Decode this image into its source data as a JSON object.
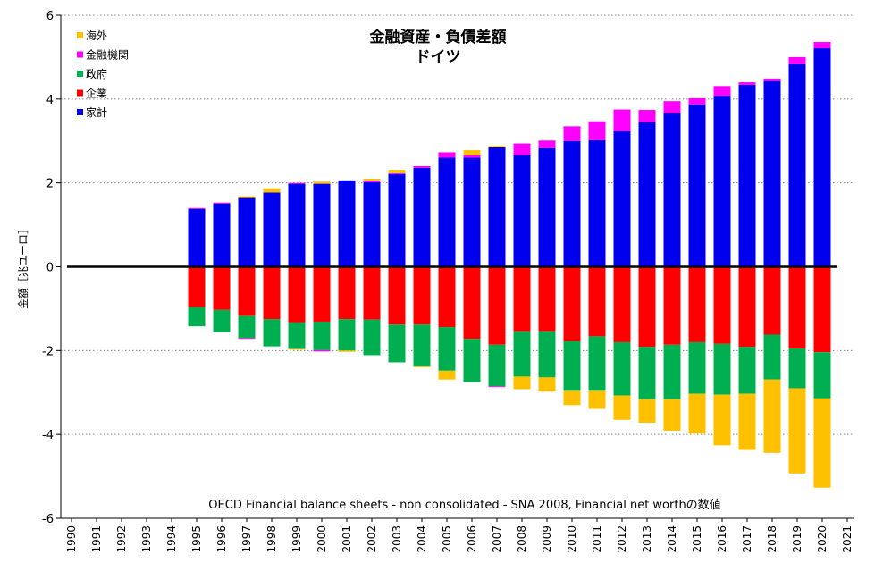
{
  "chart_data": {
    "type": "bar",
    "stacked": true,
    "title": "金融資産・負債差額",
    "subtitle": "ドイツ",
    "ylabel": "金額［兆ユーロ］",
    "xlabel": "",
    "annotation": "OECD Financial balance sheets - non consolidated - SNA 2008, Financial net worthの数値",
    "ylim": [
      -6,
      6
    ],
    "yticks": [
      -6,
      -4,
      -2,
      0,
      2,
      4,
      6
    ],
    "grid": "horizontal dotted",
    "legend_position": "top-left",
    "categories": [
      "1990",
      "1991",
      "1992",
      "1993",
      "1994",
      "1995",
      "1996",
      "1997",
      "1998",
      "1999",
      "2000",
      "2001",
      "2002",
      "2003",
      "2004",
      "2005",
      "2006",
      "2007",
      "2008",
      "2009",
      "2010",
      "2011",
      "2012",
      "2013",
      "2014",
      "2015",
      "2016",
      "2017",
      "2018",
      "2019",
      "2020",
      "2021"
    ],
    "series": [
      {
        "name": "家計",
        "color": "#0000ee",
        "values": [
          null,
          null,
          null,
          null,
          null,
          1.38,
          1.51,
          1.64,
          1.77,
          1.98,
          1.98,
          2.06,
          2.02,
          2.21,
          2.36,
          2.6,
          2.6,
          2.85,
          2.66,
          2.83,
          3.0,
          3.02,
          3.23,
          3.45,
          3.66,
          3.87,
          4.08,
          4.34,
          4.43,
          4.83,
          5.21,
          null
        ]
      },
      {
        "name": "企業",
        "color": "#ff0000",
        "values": [
          null,
          null,
          null,
          null,
          null,
          -0.97,
          -1.03,
          -1.17,
          -1.25,
          -1.33,
          -1.31,
          -1.25,
          -1.26,
          -1.38,
          -1.38,
          -1.44,
          -1.72,
          -1.86,
          -1.54,
          -1.54,
          -1.78,
          -1.66,
          -1.8,
          -1.91,
          -1.86,
          -1.8,
          -1.84,
          -1.91,
          -1.62,
          -1.95,
          -2.04,
          null
        ]
      },
      {
        "name": "政府",
        "color": "#00b050",
        "values": [
          null,
          null,
          null,
          null,
          null,
          -0.45,
          -0.53,
          -0.53,
          -0.65,
          -0.63,
          -0.68,
          -0.75,
          -0.85,
          -0.9,
          -1.0,
          -1.04,
          -1.03,
          -0.99,
          -1.08,
          -1.1,
          -1.18,
          -1.3,
          -1.27,
          -1.25,
          -1.3,
          -1.23,
          -1.21,
          -1.12,
          -1.07,
          -0.95,
          -1.1,
          null
        ]
      },
      {
        "name": "金融機関",
        "color": "#ff00ff",
        "values": [
          null,
          null,
          null,
          null,
          null,
          0.02,
          0.02,
          -0.02,
          0,
          0.02,
          -0.03,
          0,
          0.04,
          0.02,
          0.04,
          0.13,
          0.06,
          -0.02,
          0.28,
          0.18,
          0.35,
          0.45,
          0.52,
          0.29,
          0.29,
          0.15,
          0.23,
          0.06,
          0.06,
          0.17,
          0.15,
          null
        ]
      },
      {
        "name": "海外",
        "color": "#ffc000",
        "values": [
          null,
          null,
          null,
          null,
          null,
          0,
          0,
          0.04,
          0.1,
          -0.02,
          0.05,
          -0.03,
          0.04,
          0.08,
          -0.02,
          -0.21,
          0.12,
          0.03,
          -0.3,
          -0.34,
          -0.34,
          -0.43,
          -0.58,
          -0.56,
          -0.75,
          -0.95,
          -1.21,
          -1.34,
          -1.75,
          -2.03,
          -2.13,
          null
        ]
      }
    ],
    "legend_order": [
      "海外",
      "金融機関",
      "政府",
      "企業",
      "家計"
    ]
  }
}
